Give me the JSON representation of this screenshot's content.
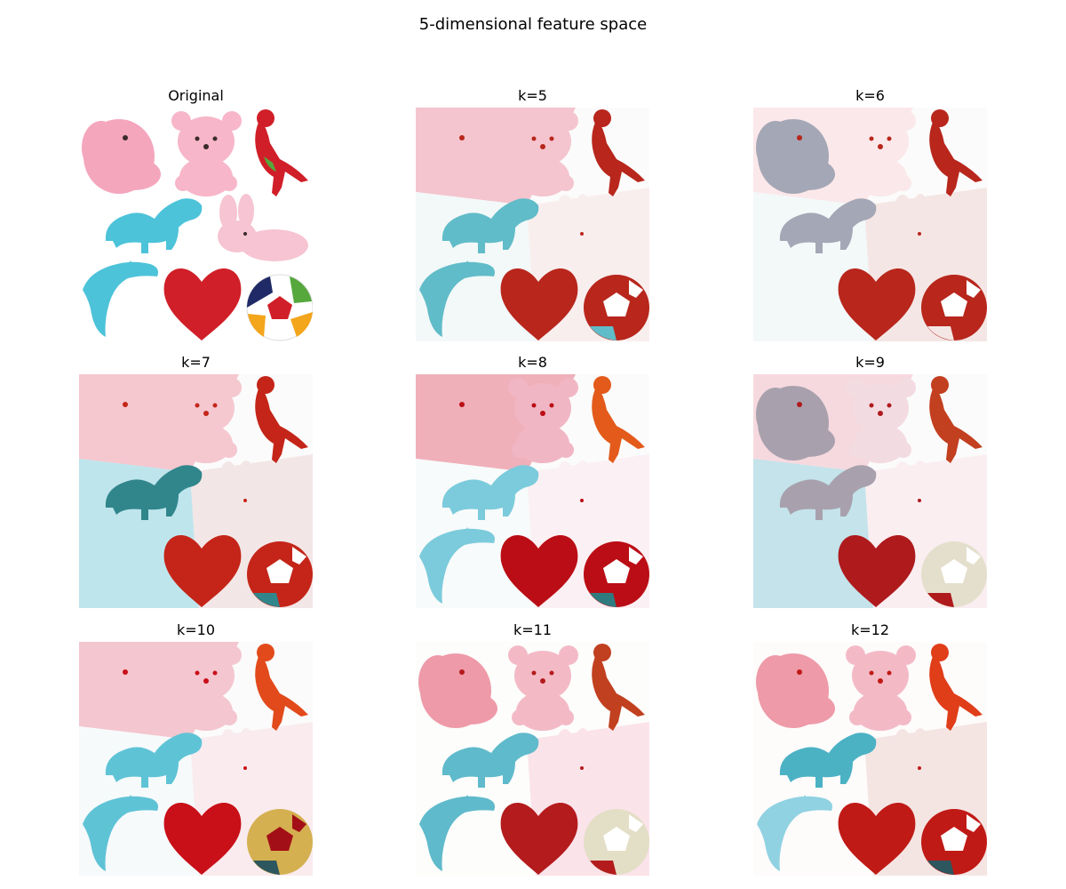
{
  "figure": {
    "title": "5-dimensional feature space"
  },
  "chart_data": {
    "type": "image-grid",
    "panels": [
      {
        "title": "Original",
        "background": "#ffffff",
        "colors": {
          "pink": "#f4a6bd",
          "bear": "#f7b6c9",
          "bunny": "#f6c4d2",
          "blue": "#4cc3d9",
          "red": "#d01f28",
          "green": "#56a83c",
          "navy": "#1f2a66",
          "orange": "#f3a51b"
        },
        "original": true
      },
      {
        "title": "k=5",
        "background": "#fbfbfb",
        "regions": {
          "top": "#f4c5ce",
          "left": "#f3f8f9",
          "right": "#f9eeee"
        },
        "colors": {
          "elephant": "#f4c5ce",
          "bear": "#f4c5ce",
          "parrot": "#b8261c",
          "dino": "#60bcc8",
          "bunny": "#f9eeee",
          "dolphin": "#60bcc8",
          "heart": "#b8261c",
          "ball_main": "#b8261c",
          "ball_b": "#ffffff",
          "ball_c": "#60bcc8"
        }
      },
      {
        "title": "k=6",
        "background": "#fbfbfb",
        "regions": {
          "top": "#fbe8ea",
          "left": "#f3f8f9",
          "right": "#f4e6e4"
        },
        "colors": {
          "elephant": "#a4a7b5",
          "bear": "#fbe8ea",
          "parrot": "#b8261c",
          "dino": "#a4a7b5",
          "bunny": "#f4e6e4",
          "dolphin": "#f3f8f9",
          "heart": "#b8261c",
          "ball_main": "#b8261c",
          "ball_b": "#ffffff",
          "ball_c": "#f4e6e4"
        }
      },
      {
        "title": "k=7",
        "background": "#fbfbfb",
        "regions": {
          "top": "#f5c7cf",
          "left": "#bfe5ec",
          "right": "#f3e6e6"
        },
        "colors": {
          "elephant": "#f5c7cf",
          "bear": "#f5c7cf",
          "parrot": "#c42518",
          "dino": "#31868c",
          "bunny": "#f3e6e6",
          "dolphin": "#bfe5ec",
          "heart": "#c42518",
          "ball_main": "#c42518",
          "ball_b": "#ffffff",
          "ball_c": "#31868c"
        }
      },
      {
        "title": "k=8",
        "background": "#fbfbfb",
        "regions": {
          "top": "#efb0ba",
          "left": "#f8fbfb",
          "right": "#fbf0f3"
        },
        "colors": {
          "elephant": "#efb0ba",
          "bear": "#f1b6c4",
          "parrot": "#e35a1b",
          "dino": "#7ccbdc",
          "bunny": "#fbf0f3",
          "dolphin": "#7ccbdc",
          "heart": "#bb0d15",
          "ball_main": "#bb0d15",
          "ball_b": "#ffffff",
          "ball_c": "#2e7c80"
        }
      },
      {
        "title": "k=9",
        "background": "#fbfbfb",
        "regions": {
          "top": "#f6d9df",
          "left": "#c4e3ea",
          "right": "#faeef1"
        },
        "colors": {
          "elephant": "#a8a1ad",
          "bear": "#f3dbe2",
          "parrot": "#c23f1f",
          "dino": "#a8a1ad",
          "bunny": "#faeef1",
          "dolphin": "#c4e3ea",
          "heart": "#af1a1d",
          "ball_main": "#e4dfcc",
          "ball_b": "#ffffff",
          "ball_c": "#af1a1d"
        }
      },
      {
        "title": "k=10",
        "background": "#fbfbfb",
        "regions": {
          "top": "#f4c6cf",
          "left": "#f6fafb",
          "right": "#f9ebee"
        },
        "colors": {
          "elephant": "#f4c6cf",
          "bear": "#f4c6cf",
          "parrot": "#e24a1c",
          "dino": "#5fc3d6",
          "bunny": "#f9ebee",
          "dolphin": "#5fc3d6",
          "heart": "#c90f18",
          "ball_main": "#d4b050",
          "ball_b": "#a30f16",
          "ball_c": "#2d565e"
        }
      },
      {
        "title": "k=11",
        "background": "#fdfdfc",
        "regions": {
          "top": "#fdfdfc",
          "left": "#fdfdfc",
          "right": "#fbe3ea"
        },
        "colors": {
          "elephant": "#ee9aa8",
          "bear": "#f3bac6",
          "parrot": "#c1401f",
          "dino": "#5fbacb",
          "bunny": "#fbe3ea",
          "dolphin": "#5fbacb",
          "heart": "#b41b1c",
          "ball_main": "#e3dec6",
          "ball_b": "#ffffff",
          "ball_c": "#b41b1c"
        }
      },
      {
        "title": "k=12",
        "background": "#fefbfb",
        "regions": {
          "top": "#fefbfb",
          "left": "#fefbfb",
          "right": "#f4e5e3"
        },
        "colors": {
          "elephant": "#ee9aa8",
          "bear": "#f3bac6",
          "parrot": "#e03d19",
          "dino": "#4bb2c4",
          "bunny": "#f4e5e3",
          "dolphin": "#90d2e2",
          "heart": "#c01a16",
          "ball_main": "#c01a16",
          "ball_b": "#ffffff",
          "ball_c": "#2d565e"
        }
      }
    ]
  }
}
